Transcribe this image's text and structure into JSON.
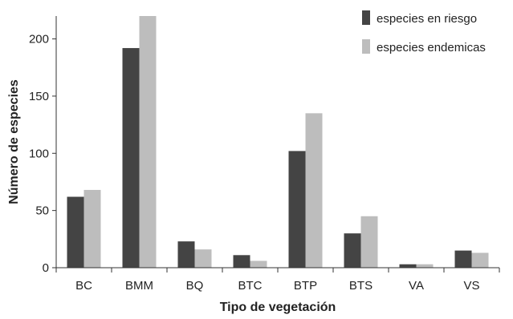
{
  "chart_data": {
    "type": "bar",
    "xlabel": "Tipo de vegetación",
    "ylabel": "Número de especies",
    "categories": [
      "BC",
      "BMM",
      "BQ",
      "BTC",
      "BTP",
      "BTS",
      "VA",
      "VS"
    ],
    "series": [
      {
        "name": "especies en riesgo",
        "color": "#444444",
        "values": [
          62,
          192,
          23,
          11,
          102,
          30,
          3,
          15
        ]
      },
      {
        "name": "especies endemicas",
        "color": "#bdbdbd",
        "values": [
          68,
          220,
          16,
          6,
          135,
          45,
          3,
          13
        ]
      }
    ],
    "ylim": [
      0,
      220
    ],
    "yticks": [
      0,
      50,
      100,
      150,
      200
    ],
    "grid": false,
    "legend_position": "top-right"
  }
}
